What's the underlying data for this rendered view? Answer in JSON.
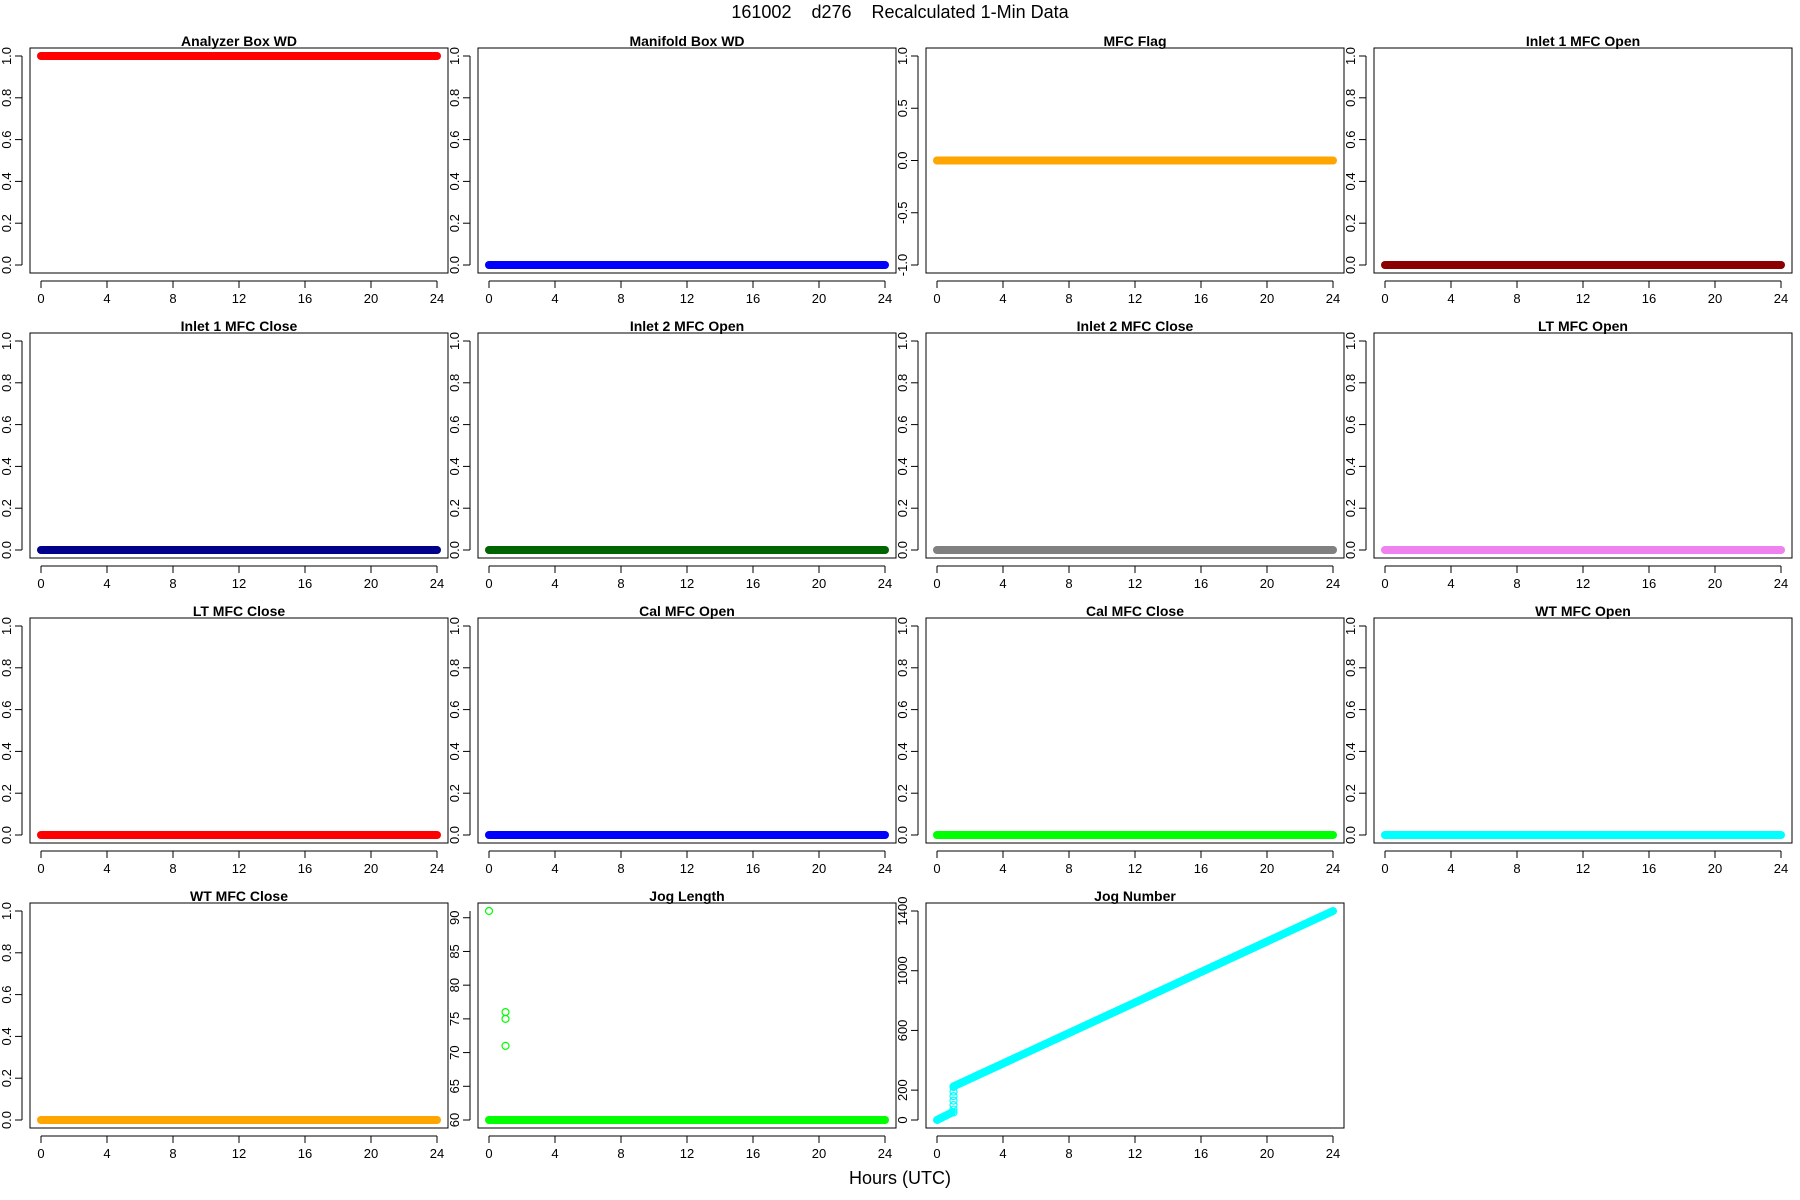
{
  "title": "161002    d276    Recalculated 1-Min Data",
  "xlabel": "Hours (UTC)",
  "chart_data": [
    {
      "type": "scatter",
      "title": "Analyzer Box WD",
      "color": "#ff0000",
      "xlim": [
        0,
        24
      ],
      "ylim": [
        0,
        1
      ],
      "xticks": [
        "0",
        "4",
        "8",
        "12",
        "16",
        "20",
        "24"
      ],
      "yticks": [
        "0.0",
        "0.2",
        "0.4",
        "0.6",
        "0.8",
        "1.0"
      ],
      "series": [
        {
          "x": [
            0,
            24
          ],
          "y": [
            1,
            1
          ],
          "style": "band"
        }
      ]
    },
    {
      "type": "scatter",
      "title": "Manifold Box WD",
      "color": "#0000ff",
      "xlim": [
        0,
        24
      ],
      "ylim": [
        0,
        1
      ],
      "xticks": [
        "0",
        "4",
        "8",
        "12",
        "16",
        "20",
        "24"
      ],
      "yticks": [
        "0.0",
        "0.2",
        "0.4",
        "0.6",
        "0.8",
        "1.0"
      ],
      "series": [
        {
          "x": [
            0,
            24
          ],
          "y": [
            0,
            0
          ],
          "style": "band"
        }
      ]
    },
    {
      "type": "scatter",
      "title": "MFC Flag",
      "color": "#ffa500",
      "xlim": [
        0,
        24
      ],
      "ylim": [
        -1,
        1
      ],
      "xticks": [
        "0",
        "4",
        "8",
        "12",
        "16",
        "20",
        "24"
      ],
      "yticks": [
        "-1.0",
        "-0.5",
        "0.0",
        "0.5",
        "1.0"
      ],
      "series": [
        {
          "x": [
            0,
            24
          ],
          "y": [
            0,
            0
          ],
          "style": "band"
        }
      ]
    },
    {
      "type": "scatter",
      "title": "Inlet 1 MFC Open",
      "color": "#8b0000",
      "xlim": [
        0,
        24
      ],
      "ylim": [
        0,
        1
      ],
      "xticks": [
        "0",
        "4",
        "8",
        "12",
        "16",
        "20",
        "24"
      ],
      "yticks": [
        "0.0",
        "0.2",
        "0.4",
        "0.6",
        "0.8",
        "1.0"
      ],
      "series": [
        {
          "x": [
            0,
            24
          ],
          "y": [
            0,
            0
          ],
          "style": "band"
        }
      ]
    },
    {
      "type": "scatter",
      "title": "Inlet 1 MFC Close",
      "color": "#00008b",
      "xlim": [
        0,
        24
      ],
      "ylim": [
        0,
        1
      ],
      "xticks": [
        "0",
        "4",
        "8",
        "12",
        "16",
        "20",
        "24"
      ],
      "yticks": [
        "0.0",
        "0.2",
        "0.4",
        "0.6",
        "0.8",
        "1.0"
      ],
      "series": [
        {
          "x": [
            0,
            24
          ],
          "y": [
            0,
            0
          ],
          "style": "band"
        }
      ]
    },
    {
      "type": "scatter",
      "title": "Inlet 2 MFC Open",
      "color": "#006400",
      "xlim": [
        0,
        24
      ],
      "ylim": [
        0,
        1
      ],
      "xticks": [
        "0",
        "4",
        "8",
        "12",
        "16",
        "20",
        "24"
      ],
      "yticks": [
        "0.0",
        "0.2",
        "0.4",
        "0.6",
        "0.8",
        "1.0"
      ],
      "series": [
        {
          "x": [
            0,
            24
          ],
          "y": [
            0,
            0
          ],
          "style": "band"
        }
      ]
    },
    {
      "type": "scatter",
      "title": "Inlet 2 MFC Close",
      "color": "#808080",
      "xlim": [
        0,
        24
      ],
      "ylim": [
        0,
        1
      ],
      "xticks": [
        "0",
        "4",
        "8",
        "12",
        "16",
        "20",
        "24"
      ],
      "yticks": [
        "0.0",
        "0.2",
        "0.4",
        "0.6",
        "0.8",
        "1.0"
      ],
      "series": [
        {
          "x": [
            0,
            24
          ],
          "y": [
            0,
            0
          ],
          "style": "band"
        }
      ]
    },
    {
      "type": "scatter",
      "title": "LT MFC Open",
      "color": "#ee82ee",
      "xlim": [
        0,
        24
      ],
      "ylim": [
        0,
        1
      ],
      "xticks": [
        "0",
        "4",
        "8",
        "12",
        "16",
        "20",
        "24"
      ],
      "yticks": [
        "0.0",
        "0.2",
        "0.4",
        "0.6",
        "0.8",
        "1.0"
      ],
      "series": [
        {
          "x": [
            0,
            24
          ],
          "y": [
            0,
            0
          ],
          "style": "band"
        }
      ]
    },
    {
      "type": "scatter",
      "title": "LT MFC Close",
      "color": "#ff0000",
      "xlim": [
        0,
        24
      ],
      "ylim": [
        0,
        1
      ],
      "xticks": [
        "0",
        "4",
        "8",
        "12",
        "16",
        "20",
        "24"
      ],
      "yticks": [
        "0.0",
        "0.2",
        "0.4",
        "0.6",
        "0.8",
        "1.0"
      ],
      "series": [
        {
          "x": [
            0,
            24
          ],
          "y": [
            0,
            0
          ],
          "style": "band"
        }
      ]
    },
    {
      "type": "scatter",
      "title": "Cal MFC Open",
      "color": "#0000ff",
      "xlim": [
        0,
        24
      ],
      "ylim": [
        0,
        1
      ],
      "xticks": [
        "0",
        "4",
        "8",
        "12",
        "16",
        "20",
        "24"
      ],
      "yticks": [
        "0.0",
        "0.2",
        "0.4",
        "0.6",
        "0.8",
        "1.0"
      ],
      "series": [
        {
          "x": [
            0,
            24
          ],
          "y": [
            0,
            0
          ],
          "style": "band"
        }
      ]
    },
    {
      "type": "scatter",
      "title": "Cal MFC Close",
      "color": "#00ff00",
      "xlim": [
        0,
        24
      ],
      "ylim": [
        0,
        1
      ],
      "xticks": [
        "0",
        "4",
        "8",
        "12",
        "16",
        "20",
        "24"
      ],
      "yticks": [
        "0.0",
        "0.2",
        "0.4",
        "0.6",
        "0.8",
        "1.0"
      ],
      "series": [
        {
          "x": [
            0,
            24
          ],
          "y": [
            0,
            0
          ],
          "style": "band"
        }
      ]
    },
    {
      "type": "scatter",
      "title": "WT MFC Open",
      "color": "#00ffff",
      "xlim": [
        0,
        24
      ],
      "ylim": [
        0,
        1
      ],
      "xticks": [
        "0",
        "4",
        "8",
        "12",
        "16",
        "20",
        "24"
      ],
      "yticks": [
        "0.0",
        "0.2",
        "0.4",
        "0.6",
        "0.8",
        "1.0"
      ],
      "series": [
        {
          "x": [
            0,
            24
          ],
          "y": [
            0,
            0
          ],
          "style": "band"
        }
      ]
    },
    {
      "type": "scatter",
      "title": "WT MFC Close",
      "color": "#ffa500",
      "xlim": [
        0,
        24
      ],
      "ylim": [
        0,
        1
      ],
      "xticks": [
        "0",
        "4",
        "8",
        "12",
        "16",
        "20",
        "24"
      ],
      "yticks": [
        "0.0",
        "0.2",
        "0.4",
        "0.6",
        "0.8",
        "1.0"
      ],
      "series": [
        {
          "x": [
            0,
            24
          ],
          "y": [
            0,
            0
          ],
          "style": "band"
        }
      ]
    },
    {
      "type": "scatter",
      "title": "Jog Length",
      "color": "#00ff00",
      "xlim": [
        0,
        24
      ],
      "ylim": [
        60,
        91
      ],
      "xticks": [
        "0",
        "4",
        "8",
        "12",
        "16",
        "20",
        "24"
      ],
      "yticks": [
        "60",
        "65",
        "70",
        "75",
        "80",
        "85",
        "90"
      ],
      "series": [
        {
          "x": [
            0,
            24
          ],
          "y": [
            60,
            60
          ],
          "style": "band"
        },
        {
          "x": [
            0,
            1,
            1,
            1
          ],
          "y": [
            91,
            76,
            75,
            71
          ],
          "style": "points"
        }
      ]
    },
    {
      "type": "scatter",
      "title": "Jog Number",
      "color": "#00ffff",
      "xlim": [
        0,
        24
      ],
      "ylim": [
        0,
        1400
      ],
      "xticks": [
        "0",
        "4",
        "8",
        "12",
        "16",
        "20",
        "24"
      ],
      "yticks": [
        "0",
        "200",
        "600",
        "1000",
        "1400"
      ],
      "series": [
        {
          "x": [
            0,
            0.9
          ],
          "y": [
            0,
            50
          ],
          "style": "band"
        },
        {
          "x": [
            1,
            1,
            1,
            1,
            1,
            1,
            1
          ],
          "y": [
            50,
            70,
            100,
            130,
            160,
            190,
            220
          ],
          "style": "points"
        },
        {
          "x": [
            1,
            24
          ],
          "y": [
            225,
            1400
          ],
          "style": "band"
        }
      ]
    }
  ]
}
